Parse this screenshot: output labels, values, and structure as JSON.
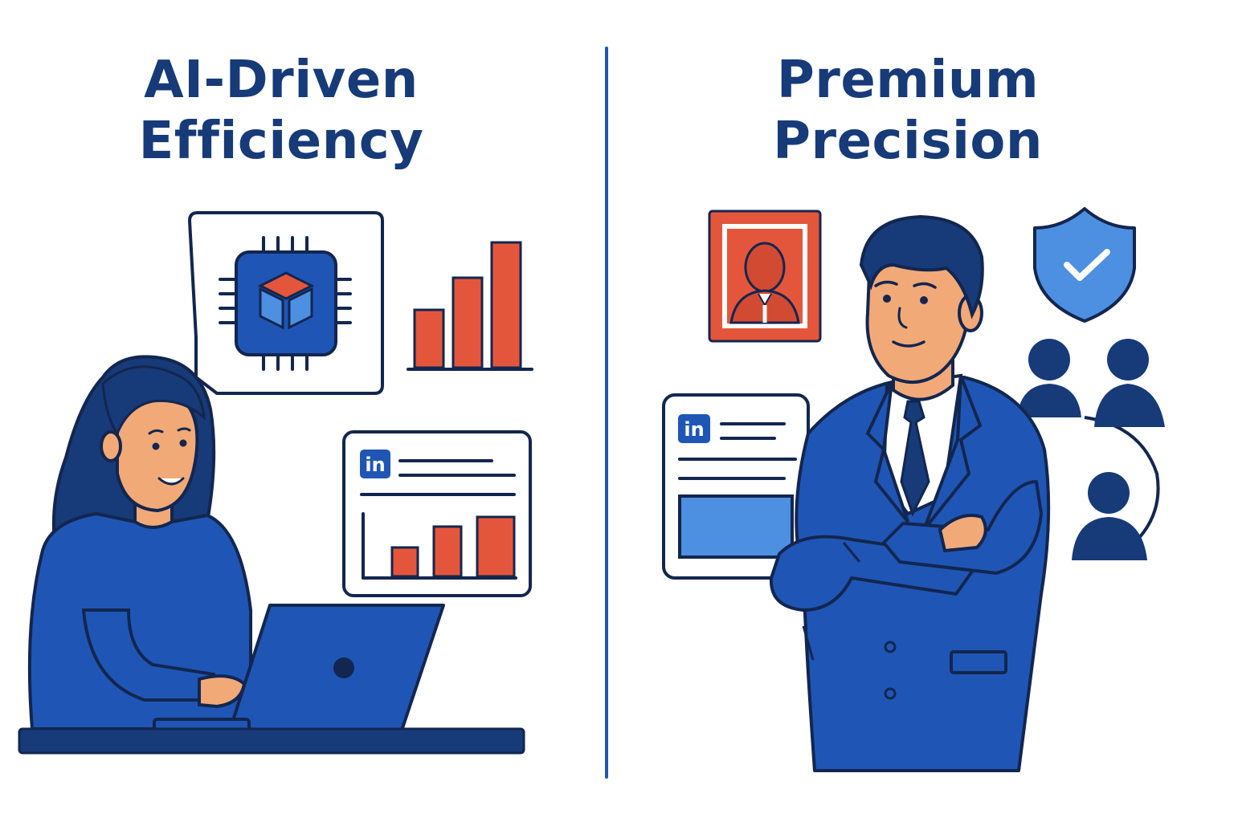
{
  "left_panel": {
    "title_line1": "AI-Driven",
    "title_line2": "Efficiency",
    "profile_card_logo": "in",
    "icons": [
      "ai-chip-icon",
      "bar-chart-icon",
      "laptop-icon"
    ]
  },
  "right_panel": {
    "title_line1": "Premium",
    "title_line2": "Precision",
    "profile_card_logo": "in",
    "icons": [
      "portrait-frame-icon",
      "shield-check-icon",
      "people-network-icon"
    ]
  },
  "colors": {
    "navy": "#173a78",
    "blue": "#1f56b5",
    "light_blue": "#4d8fe0",
    "orange": "#e4563c",
    "skin": "#f2a978",
    "outline": "#13264f"
  }
}
